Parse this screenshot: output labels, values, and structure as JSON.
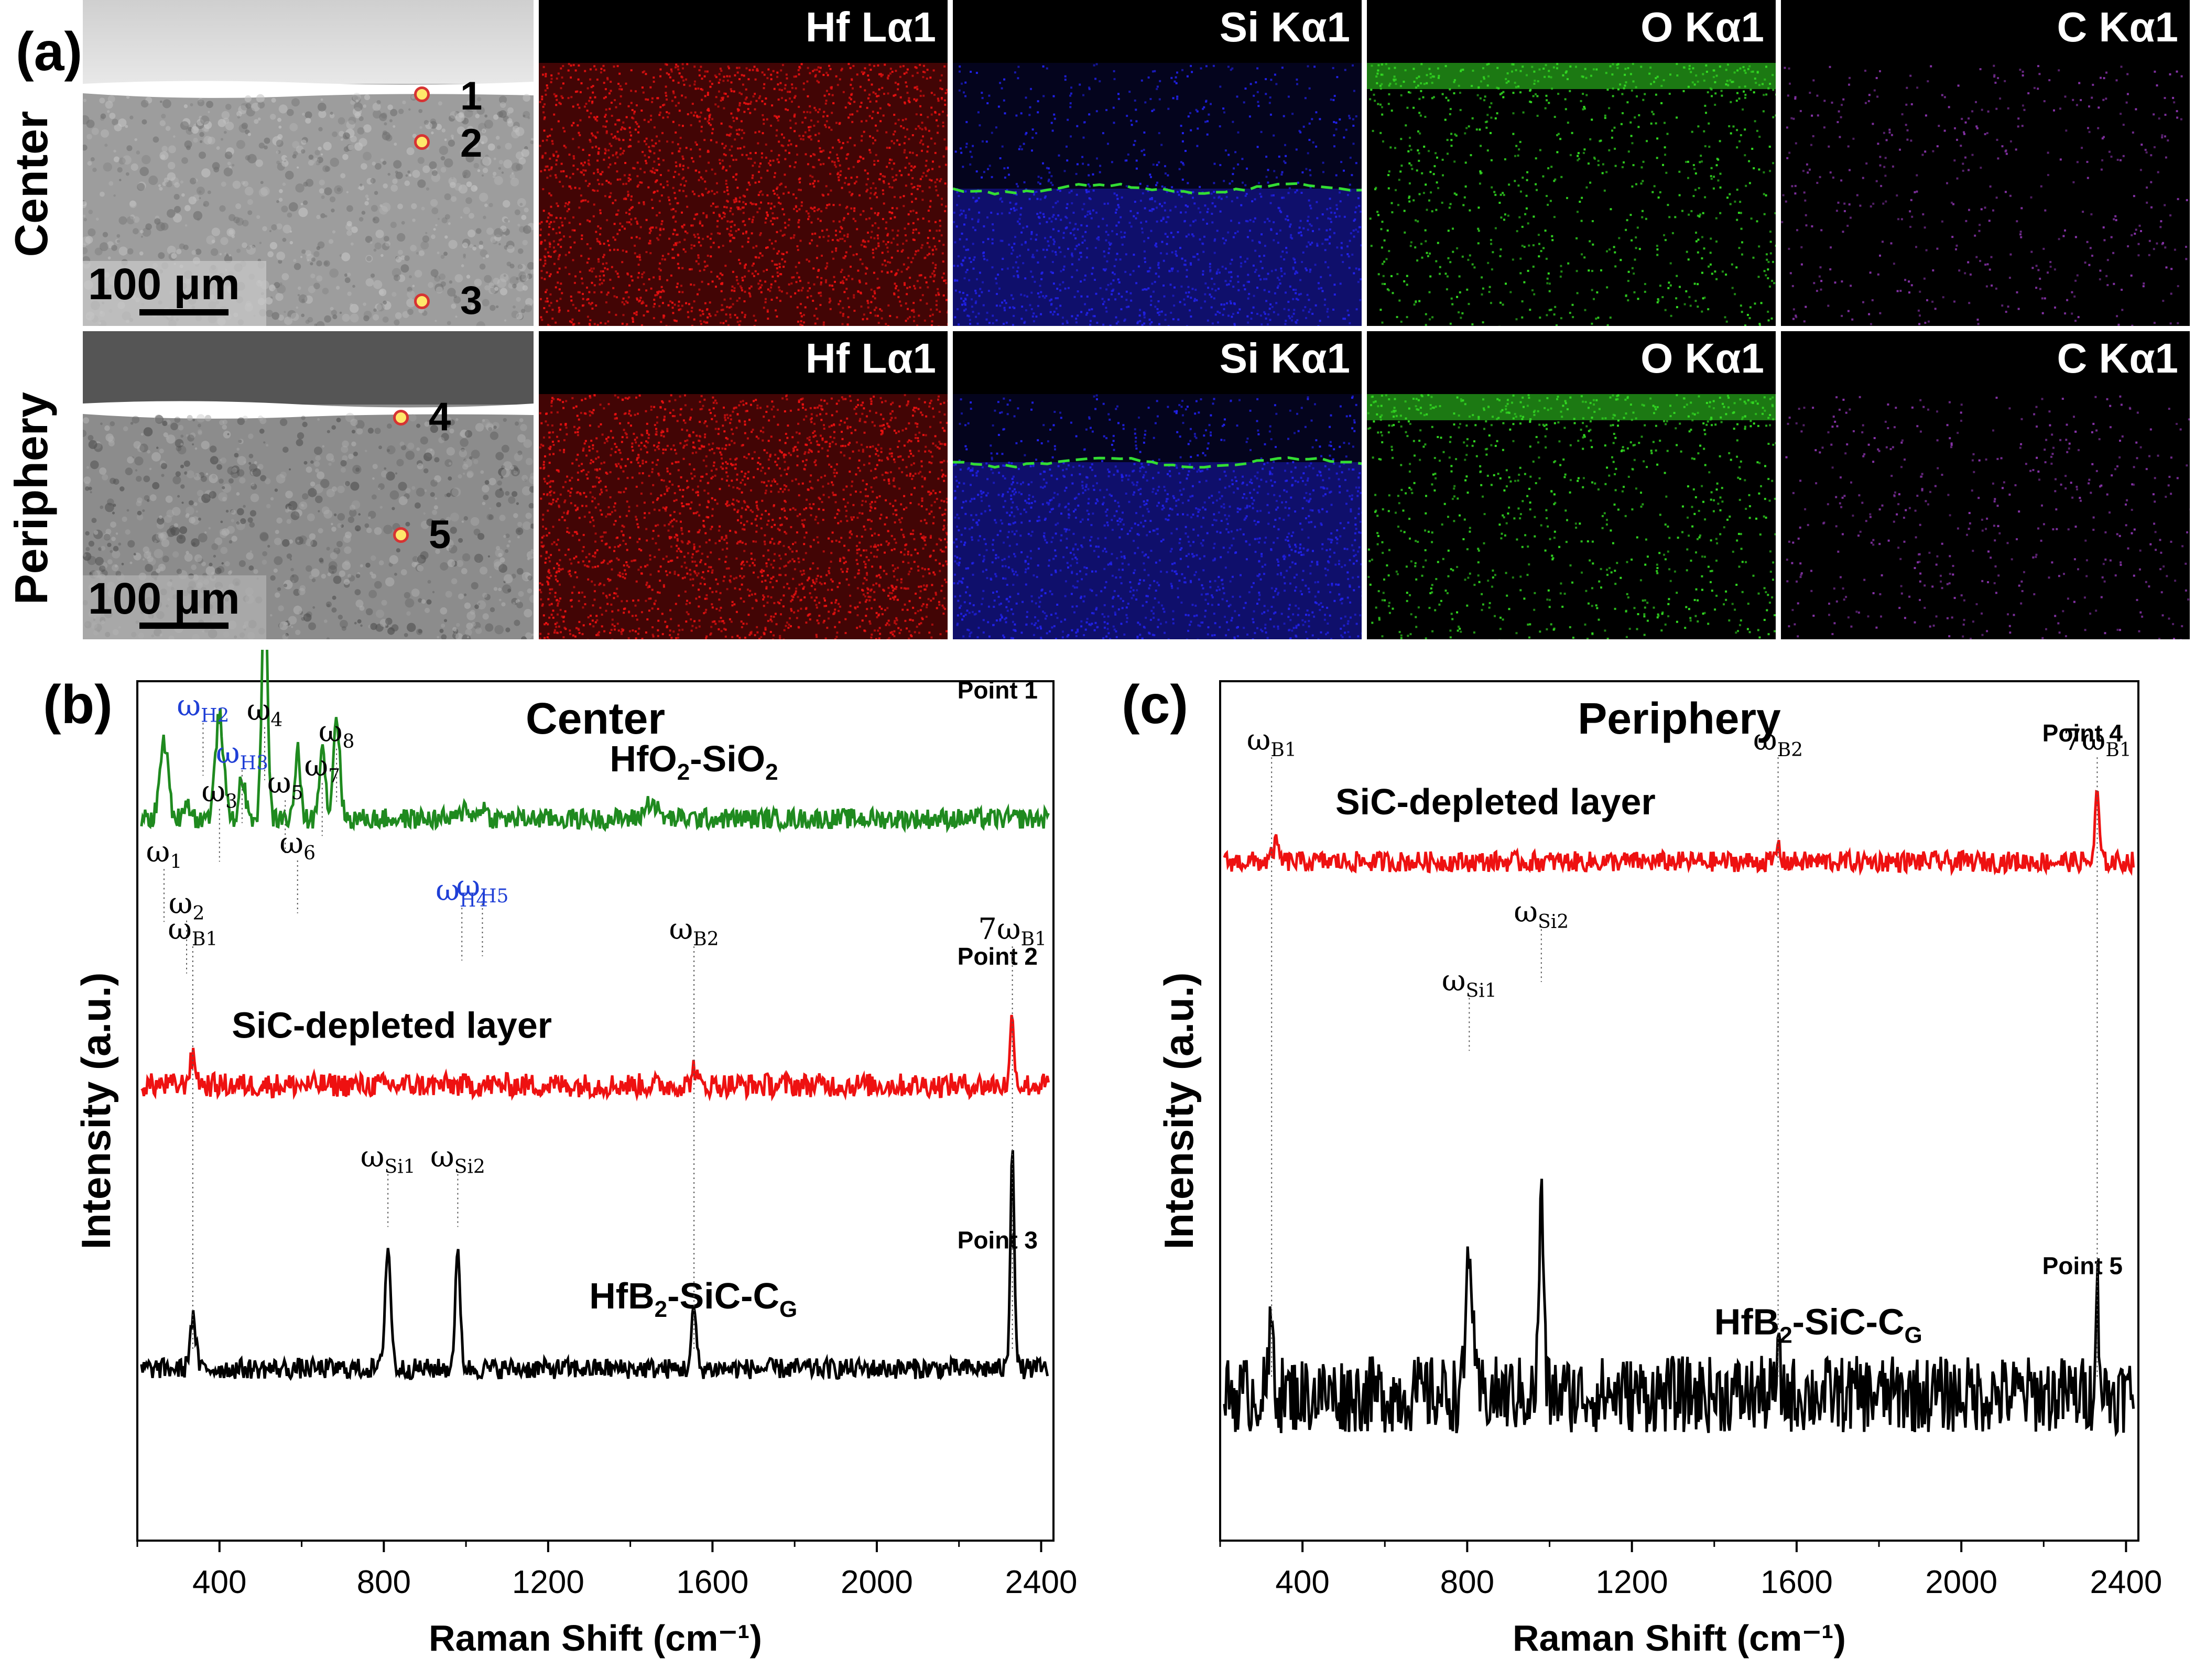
{
  "figure": {
    "panel_a_label": "(a)",
    "panel_b_label": "(b)",
    "panel_c_label": "(c)",
    "rows": [
      {
        "label": "Center",
        "scale_bar": "100 μm",
        "points": [
          "1",
          "2",
          "3"
        ]
      },
      {
        "label": "Periphery",
        "scale_bar": "100 μm",
        "points": [
          "4",
          "5"
        ]
      }
    ],
    "maps": [
      {
        "label": "Hf Lα1",
        "color": "#ee1111"
      },
      {
        "label": "Si Kα1",
        "color": "#2222ee"
      },
      {
        "label": "O Kα1",
        "color": "#33dd22"
      },
      {
        "label": "C Kα1",
        "color": "#8833aa"
      }
    ],
    "colors": {
      "green": "#1f8a1f",
      "red": "#ee1111",
      "black": "#000000",
      "blue": "#1f3fd6",
      "boundary": "#33dd33"
    }
  },
  "chart_data": [
    {
      "type": "line",
      "title": "Center",
      "xlabel": "Raman Shift (cm⁻¹)",
      "ylabel": "Intensity (a.u.)",
      "xlim": [
        200,
        2430
      ],
      "xticks": [
        400,
        800,
        1200,
        1600,
        2000,
        2400
      ],
      "xtick_labels": [
        "400",
        "800",
        "1200",
        "1600",
        "2000",
        "2400"
      ],
      "series": [
        {
          "name": "HfO2-SiO2",
          "point": "Point 1",
          "color": "#1f8a1f",
          "baseline": 0.84,
          "peaks": [
            [
              265,
              0.09,
              14
            ],
            [
              320,
              0.02,
              12
            ],
            [
              400,
              0.12,
              14
            ],
            [
              455,
              0.05,
              10
            ],
            [
              510,
              0.31,
              9
            ],
            [
              590,
              0.08,
              9
            ],
            [
              650,
              0.09,
              10
            ],
            [
              685,
              0.12,
              11
            ],
            [
              1000,
              0.015,
              12
            ],
            [
              1040,
              0.015,
              12
            ],
            [
              1450,
              0.02,
              20
            ]
          ],
          "noise": 0.012,
          "label_parts": [
            "HfO",
            "2",
            "-SiO",
            "2"
          ]
        },
        {
          "name": "SiC-depleted layer",
          "point": "Point 2",
          "color": "#ee1111",
          "baseline": 0.53,
          "peaks": [
            [
              335,
              0.03,
              12
            ],
            [
              1555,
              0.02,
              8
            ],
            [
              2330,
              0.08,
              7
            ]
          ],
          "noise": 0.014,
          "label_parts": [
            "SiC-depleted layer"
          ]
        },
        {
          "name": "HfB2-SiC-CG",
          "point": "Point 3",
          "color": "#000000",
          "baseline": 0.2,
          "peaks": [
            [
              335,
              0.06,
              10
            ],
            [
              810,
              0.14,
              10
            ],
            [
              980,
              0.13,
              9
            ],
            [
              1555,
              0.07,
              8
            ],
            [
              2330,
              0.26,
              7
            ]
          ],
          "noise": 0.012,
          "label_parts": [
            "HfB",
            "2",
            "-SiC-C",
            "G"
          ]
        }
      ],
      "annotations": [
        {
          "main": "ω",
          "sub": "1",
          "x": 265,
          "color": "#000"
        },
        {
          "main": "ω",
          "sub": "2",
          "x": 320,
          "color": "#000"
        },
        {
          "main": "ω",
          "sub": "H2",
          "x": 360,
          "color": "#1f3fd6"
        },
        {
          "main": "ω",
          "sub": "3",
          "x": 400,
          "color": "#000"
        },
        {
          "main": "ω",
          "sub": "H3",
          "x": 455,
          "color": "#1f3fd6"
        },
        {
          "main": "ω",
          "sub": "4",
          "x": 510,
          "color": "#000"
        },
        {
          "main": "ω",
          "sub": "5",
          "x": 560,
          "color": "#000"
        },
        {
          "main": "ω",
          "sub": "6",
          "x": 590,
          "color": "#000"
        },
        {
          "main": "ω",
          "sub": "7",
          "x": 650,
          "color": "#000"
        },
        {
          "main": "ω",
          "sub": "8",
          "x": 685,
          "color": "#000"
        },
        {
          "main": "ω",
          "sub": "H4",
          "x": 990,
          "color": "#1f3fd6"
        },
        {
          "main": "ω",
          "sub": "H5",
          "x": 1040,
          "color": "#1f3fd6"
        },
        {
          "main": "ω",
          "sub": "B1",
          "x": 335,
          "color": "#000"
        },
        {
          "main": "ω",
          "sub": "B2",
          "x": 1555,
          "color": "#000"
        },
        {
          "main": "7ω",
          "sub": "B1",
          "x": 2330,
          "color": "#000"
        },
        {
          "main": "ω",
          "sub": "Si1",
          "x": 810,
          "color": "#000"
        },
        {
          "main": "ω",
          "sub": "Si2",
          "x": 980,
          "color": "#000"
        }
      ]
    },
    {
      "type": "line",
      "title": "Periphery",
      "xlabel": "Raman Shift (cm⁻¹)",
      "ylabel": "Intensity (a.u.)",
      "xlim": [
        200,
        2430
      ],
      "xticks": [
        400,
        800,
        1200,
        1600,
        2000,
        2400
      ],
      "xtick_labels": [
        "400",
        "800",
        "1200",
        "1600",
        "2000",
        "2400"
      ],
      "series": [
        {
          "name": "SiC-depleted layer",
          "point": "Point 4",
          "color": "#ee1111",
          "baseline": 0.79,
          "peaks": [
            [
              335,
              0.02,
              10
            ],
            [
              1555,
              0.02,
              6
            ],
            [
              2330,
              0.08,
              7
            ]
          ],
          "noise": 0.012,
          "label_parts": [
            "SiC-depleted layer"
          ]
        },
        {
          "name": "HfB2-SiC-CG",
          "point": "Point 5",
          "color": "#000000",
          "baseline": 0.17,
          "peaks": [
            [
              325,
              0.08,
              8
            ],
            [
              805,
              0.18,
              10
            ],
            [
              980,
              0.23,
              8
            ],
            [
              1555,
              0.04,
              6
            ],
            [
              2330,
              0.12,
              7
            ]
          ],
          "noise": 0.045,
          "label_parts": [
            "HfB",
            "2",
            "-SiC-C",
            "G"
          ]
        }
      ],
      "annotations": [
        {
          "main": "ω",
          "sub": "B1",
          "x": 325,
          "color": "#000"
        },
        {
          "main": "ω",
          "sub": "B2",
          "x": 1555,
          "color": "#000"
        },
        {
          "main": "7ω",
          "sub": "B1",
          "x": 2330,
          "color": "#000"
        },
        {
          "main": "ω",
          "sub": "Si1",
          "x": 805,
          "color": "#000"
        },
        {
          "main": "ω",
          "sub": "Si2",
          "x": 980,
          "color": "#000"
        }
      ]
    }
  ]
}
